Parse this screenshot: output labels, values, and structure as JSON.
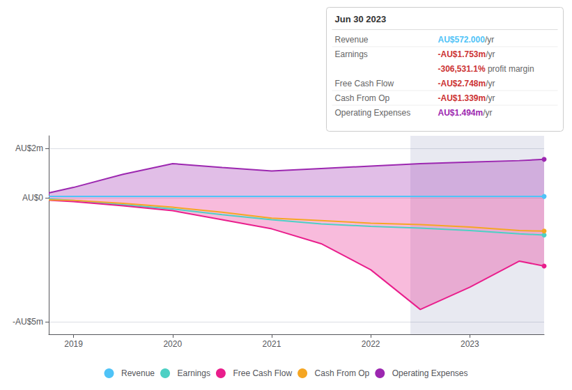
{
  "chart_data": {
    "type": "line",
    "x": [
      2018.75,
      2019.0,
      2019.5,
      2020.0,
      2020.5,
      2021.0,
      2021.5,
      2022.0,
      2022.5,
      2023.0,
      2023.5,
      2023.75
    ],
    "xlim": [
      2018.75,
      2023.75
    ],
    "xticks": [
      2019,
      2020,
      2021,
      2022,
      2023
    ],
    "ylim": [
      -5.5,
      2.5
    ],
    "yticks": [
      {
        "value": 2.0,
        "label": "AU$2m"
      },
      {
        "value": 0.0,
        "label": "AU$0"
      },
      {
        "value": -5.0,
        "label": "-AU$5m"
      }
    ],
    "grid": true,
    "legend": "bottom",
    "highlight_x": [
      2022.4,
      2023.75
    ],
    "series": [
      {
        "name": "Revenue",
        "color": "#4fc3f7",
        "type": "line",
        "values": [
          0.06,
          0.06,
          0.055,
          0.055,
          0.055,
          0.055,
          0.055,
          0.055,
          0.055,
          0.055,
          0.055,
          0.055
        ]
      },
      {
        "name": "Earnings",
        "color": "#4dd0c4",
        "type": "line",
        "values": [
          -0.05,
          -0.1,
          -0.28,
          -0.45,
          -0.68,
          -0.88,
          -1.05,
          -1.15,
          -1.22,
          -1.32,
          -1.45,
          -1.5
        ]
      },
      {
        "name": "Free Cash Flow",
        "color": "#e91e8c",
        "type": "area",
        "values": [
          -0.1,
          -0.15,
          -0.32,
          -0.52,
          -0.88,
          -1.25,
          -1.85,
          -2.9,
          -4.5,
          -3.6,
          -2.55,
          -2.75
        ]
      },
      {
        "name": "Cash From Op",
        "color": "#f5a623",
        "type": "line",
        "values": [
          -0.08,
          -0.1,
          -0.22,
          -0.38,
          -0.58,
          -0.82,
          -0.92,
          -1.02,
          -1.08,
          -1.18,
          -1.32,
          -1.34
        ]
      },
      {
        "name": "Operating Expenses",
        "color": "#9c27b0",
        "type": "area",
        "values": [
          0.2,
          0.42,
          0.95,
          1.38,
          1.22,
          1.08,
          1.18,
          1.28,
          1.38,
          1.44,
          1.5,
          1.55
        ]
      }
    ],
    "annotation": {
      "title": "Jun 30 2023",
      "rows": [
        {
          "label": "Revenue",
          "value": "AU$572.000",
          "unit": "/yr",
          "color": "#4fc3f7"
        },
        {
          "label": "Earnings",
          "value": "-AU$1.753m",
          "unit": "/yr",
          "color": "#cc3333"
        },
        {
          "value": "-306,531.1%",
          "unit": " profit margin",
          "color": "#cc3333"
        },
        {
          "label": "Free Cash Flow",
          "value": "-AU$2.748m",
          "unit": "/yr",
          "color": "#cc3333"
        },
        {
          "label": "Cash From Op",
          "value": "-AU$1.339m",
          "unit": "/yr",
          "color": "#cc3333"
        },
        {
          "label": "Operating Expenses",
          "value": "AU$1.494m",
          "unit": "/yr",
          "color": "#9c27b0"
        }
      ]
    }
  }
}
